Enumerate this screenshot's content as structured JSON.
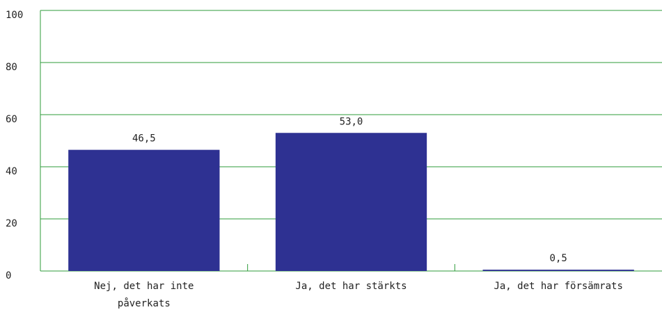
{
  "chart_data": {
    "type": "bar",
    "categories": [
      "Nej, det har inte påverkats",
      "Ja, det har stärkts",
      "Ja, det har försämrats"
    ],
    "values": [
      46.5,
      53.0,
      0.5
    ],
    "value_labels": [
      "46,5",
      "53,0",
      "0,5"
    ],
    "color": "#2e3192",
    "ylim": [
      0,
      100
    ],
    "yticks": [
      0,
      20,
      40,
      60,
      80,
      100
    ],
    "grid": true
  }
}
